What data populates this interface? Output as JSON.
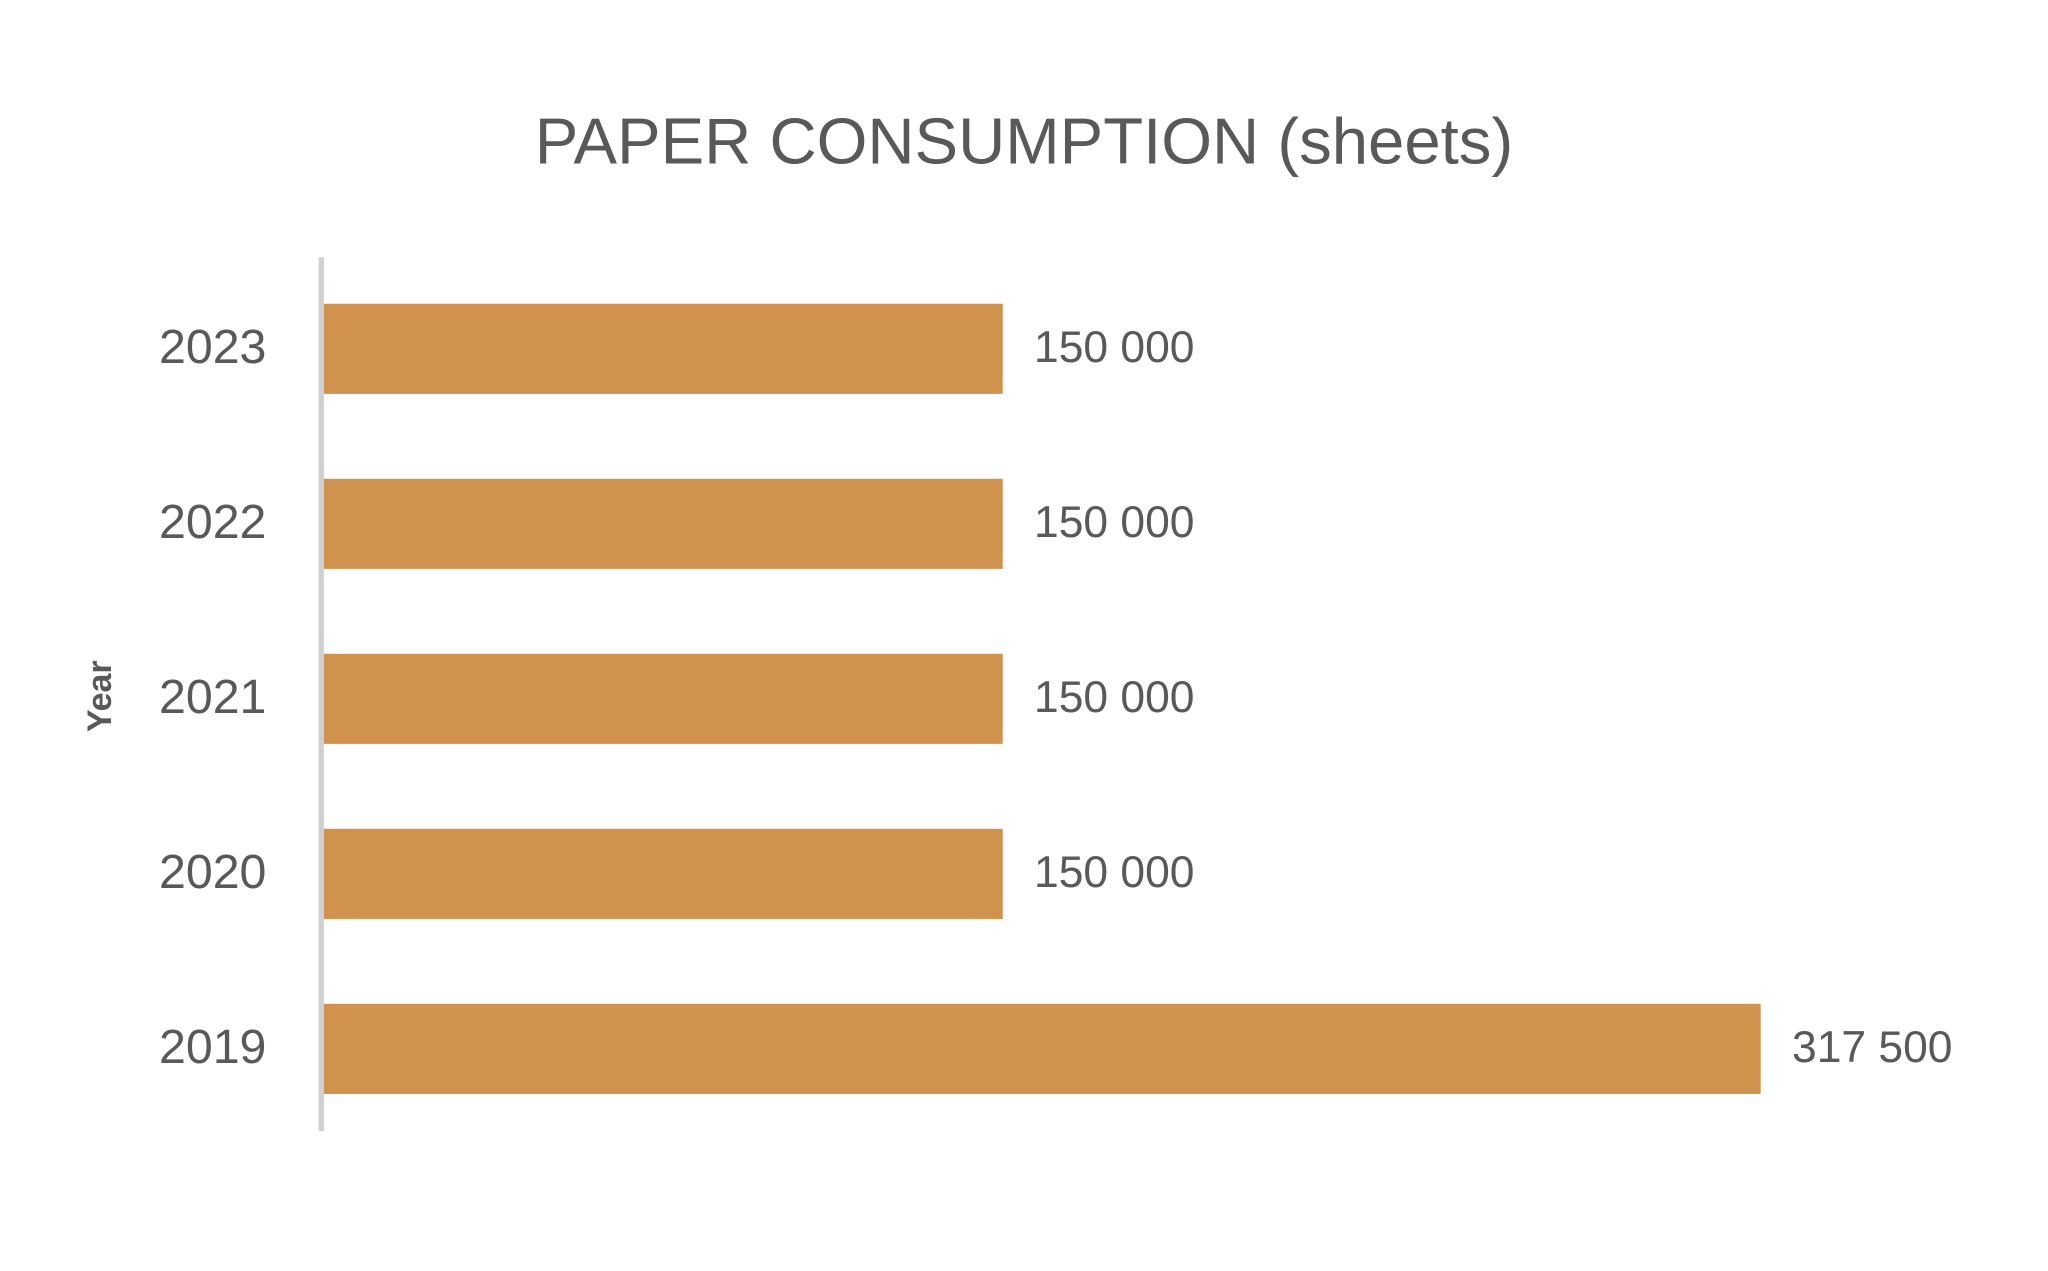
{
  "chart_data": {
    "type": "bar",
    "orientation": "horizontal",
    "title": "PAPER CONSUMPTION (sheets)",
    "y_label": "Year",
    "categories": [
      "2023",
      "2022",
      "2021",
      "2020",
      "2019"
    ],
    "values": [
      150000,
      150000,
      150000,
      150000,
      317500
    ],
    "value_labels": [
      "150 000",
      "150 000",
      "150 000",
      "150 000",
      "317 500"
    ],
    "color": "#d0924c"
  }
}
